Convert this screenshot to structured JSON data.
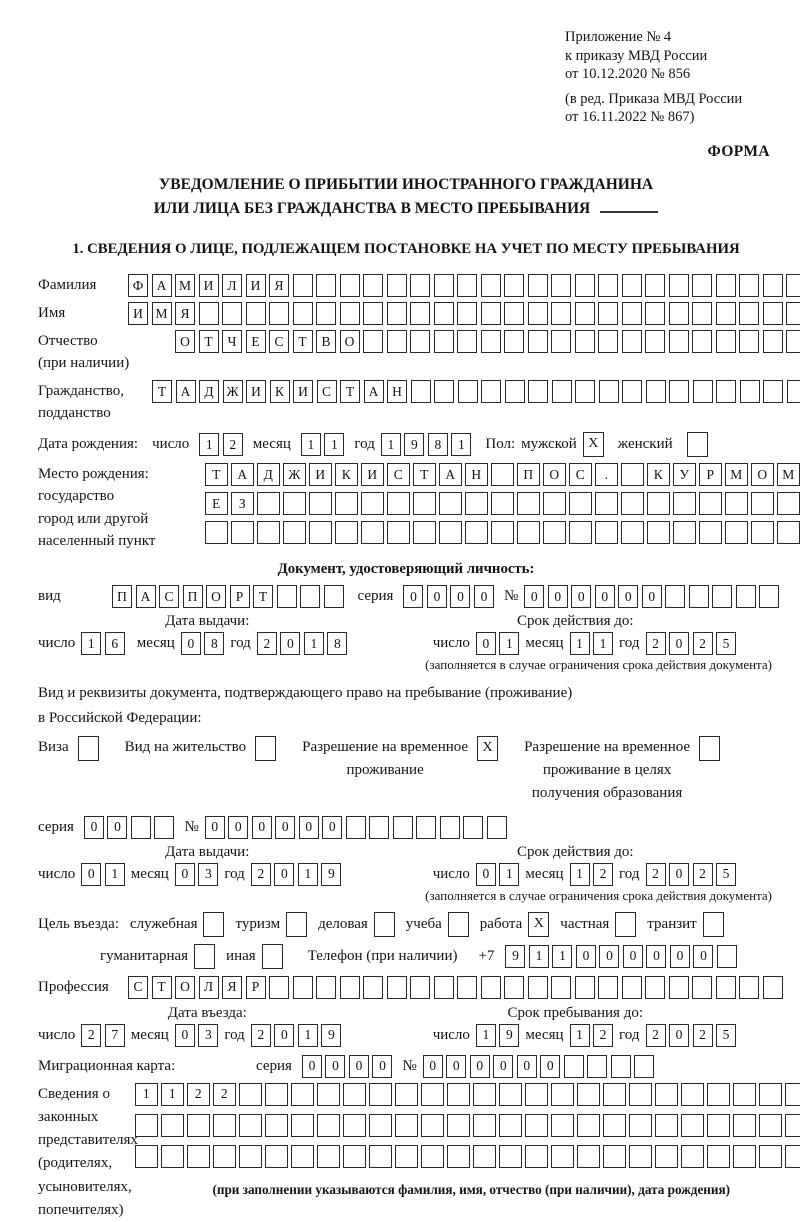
{
  "header": {
    "appendix": [
      "Приложение № 4",
      "к приказу МВД России",
      "от 10.12.2020 № 856"
    ],
    "edition": [
      "(в ред. Приказа МВД России",
      "от 16.11.2022 № 867)"
    ],
    "form_label": "ФОРМА"
  },
  "title": {
    "line1": "УВЕДОМЛЕНИЕ О ПРИБЫТИИ ИНОСТРАННОГО ГРАЖДАНИНА",
    "line2": "ИЛИ ЛИЦА БЕЗ ГРАЖДАНСТВА В МЕСТО ПРЕБЫВАНИЯ"
  },
  "section1_heading": "1. СВЕДЕНИЯ О ЛИЦЕ, ПОДЛЕЖАЩЕМ ПОСТАНОВКЕ НА УЧЕТ ПО МЕСТУ ПРЕБЫВАНИЯ",
  "labels": {
    "surname": "Фамилия",
    "given_name": "Имя",
    "patronymic": "Отчество",
    "patronymic_note": "(при наличии)",
    "citizenship1": "Гражданство,",
    "citizenship2": "подданство",
    "birth_date": "Дата рождения:",
    "day": "число",
    "month": "месяц",
    "year": "год",
    "sex": "Пол:",
    "male": "мужской",
    "female": "женский",
    "birth_place": "Место рождения:",
    "state": "государство",
    "city1": "город или другой",
    "city2": "населенный пункт",
    "identity_doc_heading": "Документ, удостоверяющий личность:",
    "kind": "вид",
    "series": "серия",
    "number_sign": "№",
    "issue_date": "Дата выдачи:",
    "valid_until": "Срок действия до:",
    "validity_note": "(заполняется в случае ограничения срока действия документа)",
    "right_doc1": "Вид и реквизиты документа, подтверждающего право на пребывание (проживание)",
    "right_doc2": "в Российской Федерации:",
    "visa": "Виза",
    "residence_permit": "Вид на жительство",
    "temp_residence1": "Разрешение на временное",
    "temp_residence2": "проживание",
    "temp_edu1": "Разрешение на временное",
    "temp_edu2": "проживание в целях",
    "temp_edu3": "получения образования",
    "visit_purpose": "Цель въезда:",
    "purposes": [
      "служебная",
      "туризм",
      "деловая",
      "учеба",
      "работа",
      "частная",
      "транзит",
      "гуманитарная",
      "иная"
    ],
    "phone": "Телефон (при наличии)",
    "phone_prefix": "+7",
    "profession": "Профессия",
    "entry_date": "Дата въезда:",
    "stay_until": "Срок пребывания до:",
    "migration_card": "Миграционная карта:",
    "reps": [
      "Сведения о",
      "законных",
      "представителях",
      "(родителях,",
      "усыновителях,",
      "попечителях)"
    ],
    "reps_note": "(при заполнении указываются фамилия, имя, отчество (при наличии), дата рождения)"
  },
  "cells": {
    "surname": {
      "text": "ФАМИЛИЯ",
      "n": 29
    },
    "given_name": {
      "text": "ИМЯ",
      "n": 29
    },
    "patronymic": {
      "text": "ОТЧЕСТВО",
      "n": 27
    },
    "citizenship": {
      "text": "ТАДЖИКИСТАН",
      "n": 28
    },
    "birth_day": {
      "text": "12",
      "n": 2
    },
    "birth_month": {
      "text": "11",
      "n": 2
    },
    "birth_year": {
      "text": "1981",
      "n": 4
    },
    "sex_male": {
      "text": "X",
      "n": 1
    },
    "sex_female": {
      "text": "",
      "n": 1
    },
    "birthplace_row1": {
      "text": "ТАДЖИКИСТАН ПОС. КУРМОМБ",
      "n": 24
    },
    "birthplace_row2": {
      "text": "ЕЗ",
      "n": 24
    },
    "birthplace_row3": {
      "text": "",
      "n": 24
    },
    "doc_kind": {
      "text": "ПАСПОРТ",
      "n": 10
    },
    "doc_series": {
      "text": "0000",
      "n": 4
    },
    "doc_number": {
      "text": "000000",
      "n": 11
    },
    "doc_issue_day": {
      "text": "16",
      "n": 2
    },
    "doc_issue_month": {
      "text": "08",
      "n": 2
    },
    "doc_issue_year": {
      "text": "2018",
      "n": 4
    },
    "doc_valid_day": {
      "text": "01",
      "n": 2
    },
    "doc_valid_month": {
      "text": "11",
      "n": 2
    },
    "doc_valid_year": {
      "text": "2025",
      "n": 4
    },
    "visa_cb": {
      "text": "",
      "n": 1
    },
    "residence_cb": {
      "text": "",
      "n": 1
    },
    "temp_residence_cb": {
      "text": "X",
      "n": 1
    },
    "temp_edu_cb": {
      "text": "",
      "n": 1
    },
    "permit_series": {
      "text": "00",
      "n": 4
    },
    "permit_number": {
      "text": "000000",
      "n": 13
    },
    "permit_issue_day": {
      "text": "01",
      "n": 2
    },
    "permit_issue_month": {
      "text": "03",
      "n": 2
    },
    "permit_issue_year": {
      "text": "2019",
      "n": 4
    },
    "permit_valid_day": {
      "text": "01",
      "n": 2
    },
    "permit_valid_month": {
      "text": "12",
      "n": 2
    },
    "permit_valid_year": {
      "text": "2025",
      "n": 4
    },
    "purpose_official_cb": {
      "text": "",
      "n": 1
    },
    "purpose_tourism_cb": {
      "text": "",
      "n": 1
    },
    "purpose_business_cb": {
      "text": "",
      "n": 1
    },
    "purpose_study_cb": {
      "text": "",
      "n": 1
    },
    "purpose_work_cb": {
      "text": "X",
      "n": 1
    },
    "purpose_private_cb": {
      "text": "",
      "n": 1
    },
    "purpose_transit_cb": {
      "text": "",
      "n": 1
    },
    "purpose_humanitarian_cb": {
      "text": "",
      "n": 1
    },
    "purpose_other_cb": {
      "text": "",
      "n": 1
    },
    "phone": {
      "text": "911000000",
      "n": 10
    },
    "profession": {
      "text": "СТОЛЯР",
      "n": 28
    },
    "entry_day": {
      "text": "27",
      "n": 2
    },
    "entry_month": {
      "text": "03",
      "n": 2
    },
    "entry_year": {
      "text": "2019",
      "n": 4
    },
    "stay_day": {
      "text": "19",
      "n": 2
    },
    "stay_month": {
      "text": "12",
      "n": 2
    },
    "stay_year": {
      "text": "2025",
      "n": 4
    },
    "migcard_series": {
      "text": "0000",
      "n": 4
    },
    "migcard_number": {
      "text": "000000",
      "n": 10
    },
    "reps_row1": {
      "text": "1122",
      "n": 26
    },
    "reps_row2": {
      "text": "",
      "n": 26
    },
    "reps_row3": {
      "text": "",
      "n": 26
    }
  }
}
